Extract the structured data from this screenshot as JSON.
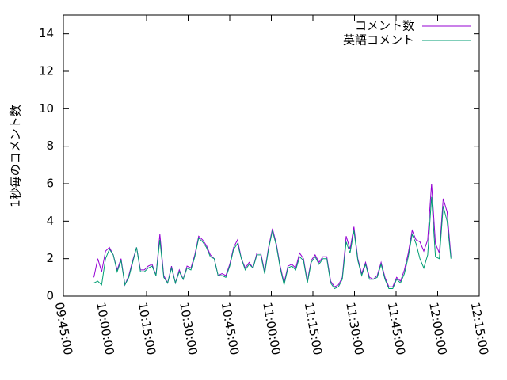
{
  "chart_data": {
    "type": "line",
    "ylabel": "1秒毎のコメント数",
    "x": [
      "09:56:00",
      "09:57:24",
      "09:58:48",
      "10:00:12",
      "10:01:36",
      "10:03:00",
      "10:04:24",
      "10:05:48",
      "10:07:12",
      "10:08:36",
      "10:10:00",
      "10:11:24",
      "10:12:48",
      "10:14:12",
      "10:15:36",
      "10:17:00",
      "10:18:24",
      "10:19:48",
      "10:21:12",
      "10:22:36",
      "10:24:00",
      "10:25:24",
      "10:26:48",
      "10:28:12",
      "10:29:36",
      "10:31:00",
      "10:32:24",
      "10:33:48",
      "10:35:12",
      "10:36:36",
      "10:38:00",
      "10:39:24",
      "10:40:48",
      "10:42:12",
      "10:43:36",
      "10:45:00",
      "10:46:24",
      "10:47:48",
      "10:49:12",
      "10:50:36",
      "10:52:00",
      "10:53:24",
      "10:54:48",
      "10:56:12",
      "10:57:36",
      "10:59:00",
      "11:00:24",
      "11:01:48",
      "11:03:12",
      "11:04:36",
      "11:06:00",
      "11:07:24",
      "11:08:48",
      "11:10:12",
      "11:11:36",
      "11:13:00",
      "11:14:24",
      "11:15:48",
      "11:17:12",
      "11:18:36",
      "11:20:00",
      "11:21:24",
      "11:22:48",
      "11:24:12",
      "11:25:36",
      "11:27:00",
      "11:28:24",
      "11:29:48",
      "11:31:12",
      "11:32:36",
      "11:34:00",
      "11:35:24",
      "11:36:48",
      "11:38:12",
      "11:39:36",
      "11:41:00",
      "11:42:24",
      "11:43:48",
      "11:45:12",
      "11:46:36",
      "11:48:00",
      "11:49:24",
      "11:50:48",
      "11:52:12",
      "11:53:36",
      "11:55:00",
      "11:56:24",
      "11:57:48",
      "11:59:12",
      "12:00:36",
      "12:02:00",
      "12:03:24",
      "12:04:48"
    ],
    "series": [
      {
        "name": "コメント数",
        "color": "#9400d3",
        "values": [
          1.0,
          2.0,
          1.3,
          2.4,
          2.6,
          2.2,
          1.4,
          2.0,
          0.6,
          1.1,
          1.9,
          2.6,
          1.4,
          1.4,
          1.6,
          1.7,
          1.1,
          3.3,
          1.1,
          0.7,
          1.6,
          0.7,
          1.4,
          0.9,
          1.6,
          1.5,
          2.2,
          3.2,
          3.0,
          2.7,
          2.2,
          2.0,
          1.1,
          1.2,
          1.1,
          1.7,
          2.6,
          3.0,
          2.0,
          1.5,
          1.8,
          1.5,
          2.3,
          2.3,
          1.3,
          2.6,
          3.6,
          2.8,
          1.6,
          0.7,
          1.6,
          1.7,
          1.5,
          2.3,
          2.0,
          0.8,
          1.9,
          2.2,
          1.8,
          2.1,
          2.1,
          0.8,
          0.5,
          0.6,
          1.0,
          3.2,
          2.5,
          3.7,
          2.0,
          1.2,
          1.8,
          1.0,
          0.9,
          1.1,
          1.8,
          1.0,
          0.5,
          0.5,
          1.0,
          0.8,
          1.4,
          2.3,
          3.5,
          3.0,
          2.9,
          2.4,
          3.0,
          6.0,
          2.8,
          2.3,
          5.2,
          4.5,
          2.1
        ]
      },
      {
        "name": "英語コメント",
        "color": "#009e73",
        "values": [
          0.7,
          0.8,
          0.6,
          2.0,
          2.5,
          2.2,
          1.3,
          1.9,
          0.6,
          1.0,
          1.8,
          2.6,
          1.3,
          1.3,
          1.5,
          1.6,
          1.1,
          3.0,
          1.0,
          0.7,
          1.5,
          0.7,
          1.3,
          0.9,
          1.5,
          1.4,
          2.1,
          3.1,
          2.9,
          2.6,
          2.1,
          2.0,
          1.1,
          1.1,
          1.0,
          1.6,
          2.5,
          2.8,
          2.0,
          1.4,
          1.7,
          1.5,
          2.2,
          2.2,
          1.2,
          2.5,
          3.5,
          2.7,
          1.5,
          0.6,
          1.5,
          1.6,
          1.4,
          2.1,
          1.9,
          0.7,
          1.8,
          2.1,
          1.7,
          2.0,
          2.0,
          0.7,
          0.4,
          0.5,
          0.9,
          2.9,
          2.3,
          3.5,
          1.9,
          1.1,
          1.7,
          0.9,
          0.9,
          1.0,
          1.7,
          0.9,
          0.4,
          0.4,
          0.9,
          0.7,
          1.2,
          2.1,
          3.3,
          2.8,
          2.0,
          1.5,
          2.2,
          5.3,
          2.1,
          2.0,
          4.8,
          4.0,
          2.0
        ]
      }
    ],
    "xlim": [
      "09:45:00",
      "12:15:00"
    ],
    "xticks": [
      "09:45:00",
      "10:00:00",
      "10:15:00",
      "10:30:00",
      "10:45:00",
      "11:00:00",
      "11:15:00",
      "11:30:00",
      "11:45:00",
      "12:00:00",
      "12:15:00"
    ],
    "ylim": [
      0,
      15
    ],
    "yticks": [
      0,
      2,
      4,
      6,
      8,
      10,
      12,
      14
    ],
    "legend": "top-right"
  }
}
